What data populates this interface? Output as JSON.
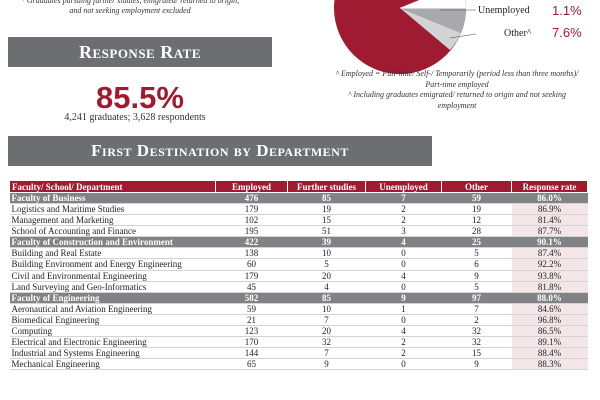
{
  "top_note": "* Graduates pursuing further studies, emigrated/ returned to origin, and not seeking employment excluded",
  "response_rate": {
    "heading": "Response Rate",
    "value": "85.5%",
    "sub": "4,241 graduates; 3,628 respondents"
  },
  "pie": {
    "legend": [
      {
        "label": "Unemployed",
        "pct": "1.1%"
      },
      {
        "label": "Other^",
        "pct": "7.6%"
      }
    ],
    "colors": {
      "main": "#9e1b32",
      "grey1": "#a7a9ac",
      "grey2": "#d1d3d4"
    }
  },
  "notes": [
    "^ Employed = Full-time/ Self-/ Temporarily (period less than three months)/ Part-time employed",
    "^ Including graduates emigrated/ returned to origin and not seeking employment"
  ],
  "destination": {
    "heading": "First Destination by Department",
    "columns": [
      "Faculty/ School/ Department",
      "Employed",
      "Further studies",
      "Unemployed",
      "Other",
      "Response rate"
    ],
    "rows": [
      {
        "type": "faculty",
        "cells": [
          "Faculty of Business",
          "476",
          "85",
          "7",
          "59",
          "86.0%"
        ]
      },
      {
        "type": "dept",
        "cells": [
          "Logistics and Maritime Studies",
          "179",
          "19",
          "2",
          "19",
          "86.9%"
        ]
      },
      {
        "type": "dept",
        "cells": [
          "Management and Marketing",
          "102",
          "15",
          "2",
          "12",
          "81.4%"
        ]
      },
      {
        "type": "dept",
        "cells": [
          "School of Accounting and Finance",
          "195",
          "51",
          "3",
          "28",
          "87.7%"
        ]
      },
      {
        "type": "faculty",
        "cells": [
          "Faculty of Construction and Environment",
          "422",
          "39",
          "4",
          "25",
          "90.1%"
        ]
      },
      {
        "type": "dept",
        "cells": [
          "Building and Real Estate",
          "138",
          "10",
          "0",
          "5",
          "87.4%"
        ]
      },
      {
        "type": "dept-tall",
        "cells": [
          "Building Environment and Energy Engineering",
          "60",
          "5",
          "0",
          "6",
          "92.2%"
        ]
      },
      {
        "type": "dept",
        "cells": [
          "Civil and Environmental Engineering",
          "179",
          "20",
          "4",
          "9",
          "93.8%"
        ]
      },
      {
        "type": "dept",
        "cells": [
          "Land Surveying and Geo-Informatics",
          "45",
          "4",
          "0",
          "5",
          "81.8%"
        ]
      },
      {
        "type": "faculty",
        "cells": [
          "Faculty of Engineering",
          "582",
          "85",
          "9",
          "97",
          "88.0%"
        ]
      },
      {
        "type": "dept",
        "cells": [
          "Aeronautical and Aviation Engineering",
          "59",
          "10",
          "1",
          "7",
          "84.6%"
        ]
      },
      {
        "type": "dept",
        "cells": [
          "Biomedical Engineering",
          "21",
          "7",
          "0",
          "2",
          "96.8%"
        ]
      },
      {
        "type": "dept",
        "cells": [
          "Computing",
          "123",
          "20",
          "4",
          "32",
          "86.5%"
        ]
      },
      {
        "type": "dept",
        "cells": [
          "Electrical and Electronic Engineering",
          "170",
          "32",
          "2",
          "32",
          "89.1%"
        ]
      },
      {
        "type": "dept",
        "cells": [
          "Industrial and Systems Engineering",
          "144",
          "7",
          "2",
          "15",
          "88.4%"
        ]
      },
      {
        "type": "dept",
        "cells": [
          "Mechanical Engineering",
          "65",
          "9",
          "0",
          "9",
          "88.3%"
        ]
      }
    ]
  }
}
